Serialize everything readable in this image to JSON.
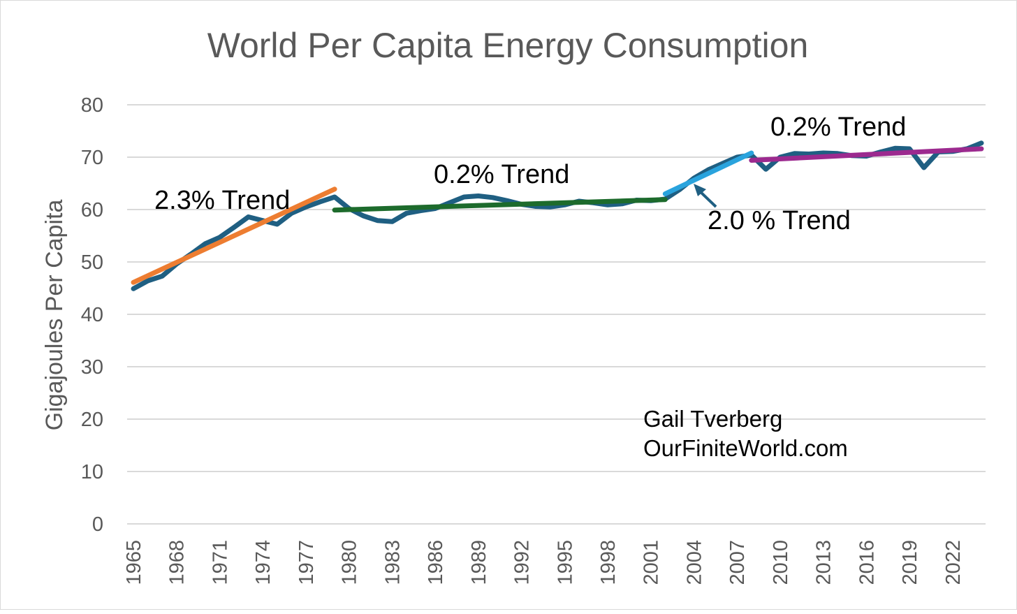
{
  "chart_data": {
    "type": "line",
    "title": "World Per Capita Energy Consumption",
    "xlabel": "",
    "ylabel": "Gigajoules Per Capita",
    "ylim": [
      0,
      80
    ],
    "yticks": [
      0,
      10,
      20,
      30,
      40,
      50,
      60,
      70,
      80
    ],
    "xticks": [
      "1965",
      "1968",
      "1971",
      "1974",
      "1977",
      "1980",
      "1983",
      "1986",
      "1989",
      "1992",
      "1995",
      "1998",
      "2001",
      "2004",
      "2007",
      "2010",
      "2013",
      "2016",
      "2019",
      "2022"
    ],
    "grid": true,
    "x": [
      1965,
      1966,
      1967,
      1968,
      1969,
      1970,
      1971,
      1972,
      1973,
      1974,
      1975,
      1976,
      1977,
      1978,
      1979,
      1980,
      1981,
      1982,
      1983,
      1984,
      1985,
      1986,
      1987,
      1988,
      1989,
      1990,
      1991,
      1992,
      1993,
      1994,
      1995,
      1996,
      1997,
      1998,
      1999,
      2000,
      2001,
      2002,
      2003,
      2004,
      2005,
      2006,
      2007,
      2008,
      2009,
      2010,
      2011,
      2012,
      2013,
      2014,
      2015,
      2016,
      2017,
      2018,
      2019,
      2020,
      2021,
      2022,
      2023,
      2024
    ],
    "series": [
      {
        "color": "#1f5f82",
        "values": [
          44.9,
          46.4,
          47.3,
          49.6,
          51.5,
          53.5,
          54.7,
          56.6,
          58.6,
          57.9,
          57.2,
          59.3,
          60.5,
          61.5,
          62.4,
          60.2,
          58.8,
          57.9,
          57.7,
          59.3,
          59.8,
          60.2,
          61.3,
          62.4,
          62.6,
          62.3,
          61.7,
          61.0,
          60.6,
          60.5,
          60.9,
          61.6,
          61.3,
          60.9,
          61.1,
          61.8,
          61.7,
          62.0,
          63.8,
          66.0,
          67.6,
          68.8,
          70.0,
          70.4,
          67.7,
          70.0,
          70.7,
          70.6,
          70.8,
          70.7,
          70.3,
          70.2,
          71.0,
          71.7,
          71.6,
          68.0,
          71.0,
          71.1,
          71.6,
          72.7
        ]
      }
    ],
    "trends": [
      {
        "label": "2.3% Trend",
        "color": "#ed7d31",
        "x": [
          1965,
          1979
        ],
        "values": [
          46.1,
          63.9
        ]
      },
      {
        "label": "0.2% Trend",
        "color": "#1d6b2c",
        "x": [
          1979,
          2002
        ],
        "values": [
          59.9,
          61.9
        ]
      },
      {
        "label": "2.0 % Trend",
        "color": "#29a3dd",
        "x": [
          2002,
          2008
        ],
        "values": [
          63.0,
          70.8
        ]
      },
      {
        "label": "0.2%  Trend",
        "color": "#9c2a8f",
        "x": [
          2008,
          2024
        ],
        "values": [
          69.4,
          71.6
        ]
      }
    ],
    "annotations": [
      "2.3% Trend",
      "0.2% Trend",
      "2.0 % Trend",
      "0.2%  Trend"
    ],
    "credit": [
      "Gail Tverberg",
      "OurFiniteWorld.com"
    ]
  }
}
